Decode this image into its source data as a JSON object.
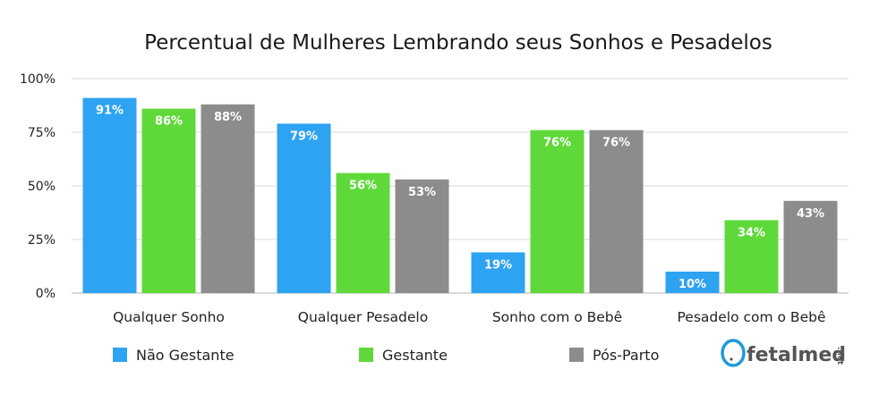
{
  "logo": {
    "brand": "fetalmed",
    "suffix": ".net",
    "accent": "#1e9bd7"
  },
  "chart_data": {
    "type": "bar",
    "title": "Percentual de Mulheres Lembrando seus Sonhos e Pesadelos",
    "categories": [
      "Qualquer Sonho",
      "Qualquer Pesadelo",
      "Sonho com o Bebê",
      "Pesadelo com o Bebê"
    ],
    "series": [
      {
        "name": "Não Gestante",
        "color": "#2ea3f2",
        "values": [
          91,
          79,
          19,
          10
        ],
        "labels": [
          "91%",
          "79%",
          "19%",
          "10%"
        ]
      },
      {
        "name": "Gestante",
        "color": "#5fd93a",
        "values": [
          86,
          56,
          76,
          34
        ],
        "labels": [
          "86%",
          "56%",
          "76%",
          "34%"
        ]
      },
      {
        "name": "Pós-Parto",
        "color": "#8c8c8c",
        "values": [
          88,
          53,
          76,
          43
        ],
        "labels": [
          "88%",
          "53%",
          "76%",
          "43%"
        ]
      }
    ],
    "yticks": [
      0,
      25,
      50,
      75,
      100
    ],
    "ytick_labels": [
      "0%",
      "25%",
      "50%",
      "75%",
      "100%"
    ],
    "ylim": [
      0,
      100
    ],
    "grid": true,
    "legend_position": "bottom"
  }
}
